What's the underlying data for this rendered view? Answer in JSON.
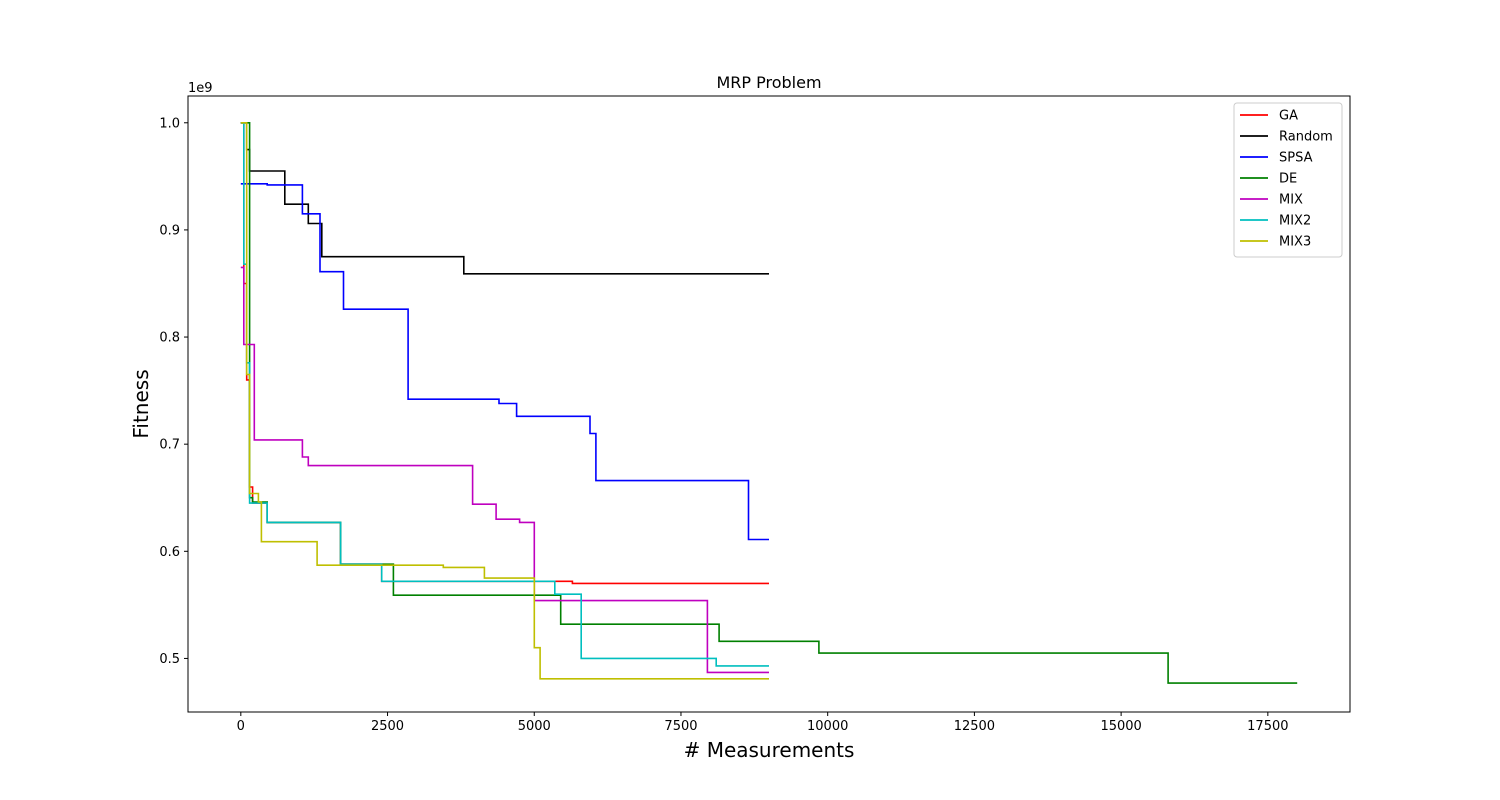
{
  "chart_data": {
    "type": "line",
    "title": "MRP Problem",
    "xlabel": "# Measurements",
    "ylabel": "Fitness",
    "y_offset_label": "1e9",
    "xlim": [
      -900,
      18900
    ],
    "ylim": [
      0.45,
      1.025
    ],
    "x_ticks": [
      0,
      2500,
      5000,
      7500,
      10000,
      12500,
      15000,
      17500
    ],
    "y_ticks": [
      0.5,
      0.6,
      0.7,
      0.8,
      0.9,
      1.0
    ],
    "grid": false,
    "legend_position": "top-right",
    "step_plot": true,
    "series": [
      {
        "name": "GA",
        "color": "#ff0000",
        "points": [
          [
            0,
            1.0
          ],
          [
            50,
            0.85
          ],
          [
            100,
            0.76
          ],
          [
            150,
            0.66
          ],
          [
            200,
            0.645
          ],
          [
            450,
            0.627
          ],
          [
            1700,
            0.588
          ],
          [
            2400,
            0.572
          ],
          [
            5000,
            0.572
          ],
          [
            5350,
            0.572
          ],
          [
            5650,
            0.57
          ],
          [
            9000,
            0.57
          ]
        ]
      },
      {
        "name": "Random",
        "color": "#000000",
        "points": [
          [
            0,
            1.0
          ],
          [
            100,
            0.975
          ],
          [
            150,
            0.955
          ],
          [
            700,
            0.955
          ],
          [
            750,
            0.924
          ],
          [
            1100,
            0.924
          ],
          [
            1150,
            0.906
          ],
          [
            1350,
            0.906
          ],
          [
            1380,
            0.875
          ],
          [
            3750,
            0.875
          ],
          [
            3800,
            0.859
          ],
          [
            9000,
            0.859
          ]
        ]
      },
      {
        "name": "SPSA",
        "color": "#0000ff",
        "points": [
          [
            0,
            0.943
          ],
          [
            400,
            0.943
          ],
          [
            450,
            0.942
          ],
          [
            1000,
            0.942
          ],
          [
            1050,
            0.915
          ],
          [
            1300,
            0.915
          ],
          [
            1350,
            0.861
          ],
          [
            1700,
            0.861
          ],
          [
            1750,
            0.826
          ],
          [
            2800,
            0.826
          ],
          [
            2850,
            0.742
          ],
          [
            4350,
            0.742
          ],
          [
            4400,
            0.738
          ],
          [
            4650,
            0.738
          ],
          [
            4700,
            0.726
          ],
          [
            5900,
            0.726
          ],
          [
            5950,
            0.71
          ],
          [
            6000,
            0.71
          ],
          [
            6050,
            0.666
          ],
          [
            8600,
            0.666
          ],
          [
            8650,
            0.611
          ],
          [
            9000,
            0.611
          ]
        ]
      },
      {
        "name": "DE",
        "color": "#008000",
        "points": [
          [
            0,
            1.0
          ],
          [
            150,
            0.65
          ],
          [
            200,
            0.646
          ],
          [
            450,
            0.627
          ],
          [
            1700,
            0.588
          ],
          [
            2550,
            0.588
          ],
          [
            2600,
            0.559
          ],
          [
            5400,
            0.559
          ],
          [
            5450,
            0.532
          ],
          [
            8100,
            0.532
          ],
          [
            8150,
            0.516
          ],
          [
            9800,
            0.516
          ],
          [
            9850,
            0.505
          ],
          [
            15750,
            0.505
          ],
          [
            15800,
            0.477
          ],
          [
            18000,
            0.477
          ]
        ]
      },
      {
        "name": "MIX",
        "color": "#bf00bf",
        "points": [
          [
            0,
            0.865
          ],
          [
            50,
            0.793
          ],
          [
            200,
            0.793
          ],
          [
            230,
            0.704
          ],
          [
            1000,
            0.704
          ],
          [
            1050,
            0.688
          ],
          [
            1150,
            0.68
          ],
          [
            3900,
            0.68
          ],
          [
            3950,
            0.644
          ],
          [
            4300,
            0.644
          ],
          [
            4350,
            0.63
          ],
          [
            4700,
            0.63
          ],
          [
            4750,
            0.627
          ],
          [
            4950,
            0.627
          ],
          [
            5000,
            0.554
          ],
          [
            7900,
            0.554
          ],
          [
            7950,
            0.487
          ],
          [
            9000,
            0.487
          ]
        ]
      },
      {
        "name": "MIX2",
        "color": "#00bfbf",
        "points": [
          [
            0,
            1.0
          ],
          [
            50,
            0.868
          ],
          [
            100,
            0.776
          ],
          [
            150,
            0.645
          ],
          [
            200,
            0.645
          ],
          [
            450,
            0.627
          ],
          [
            1700,
            0.588
          ],
          [
            2300,
            0.588
          ],
          [
            2400,
            0.572
          ],
          [
            5300,
            0.572
          ],
          [
            5350,
            0.56
          ],
          [
            5750,
            0.56
          ],
          [
            5800,
            0.5
          ],
          [
            8050,
            0.5
          ],
          [
            8100,
            0.493
          ],
          [
            9000,
            0.493
          ]
        ]
      },
      {
        "name": "MIX3",
        "color": "#bfbf00",
        "points": [
          [
            0,
            1.0
          ],
          [
            100,
            0.765
          ],
          [
            150,
            0.654
          ],
          [
            300,
            0.646
          ],
          [
            350,
            0.609
          ],
          [
            1250,
            0.609
          ],
          [
            1300,
            0.587
          ],
          [
            3400,
            0.587
          ],
          [
            3450,
            0.585
          ],
          [
            4100,
            0.585
          ],
          [
            4150,
            0.575
          ],
          [
            4950,
            0.575
          ],
          [
            5000,
            0.51
          ],
          [
            5050,
            0.51
          ],
          [
            5100,
            0.481
          ],
          [
            9000,
            0.481
          ]
        ]
      }
    ]
  }
}
